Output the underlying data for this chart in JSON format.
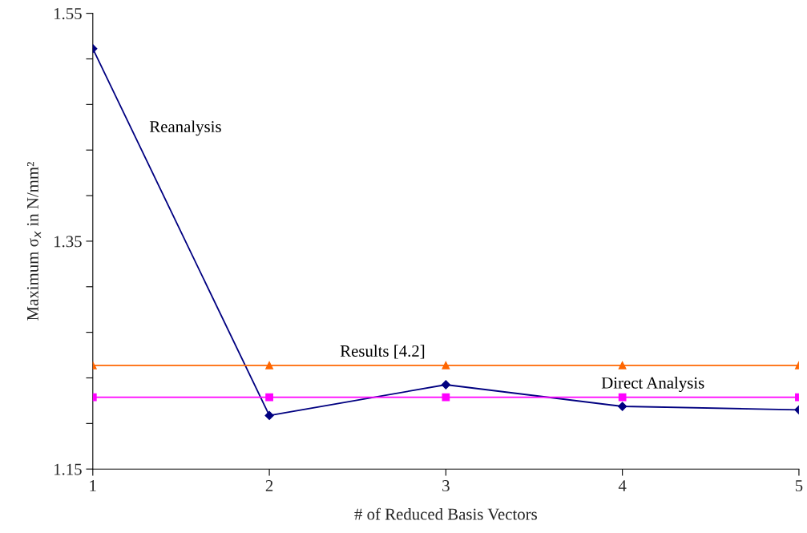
{
  "chart_data": {
    "type": "line",
    "xlabel": "# of Reduced Basis Vectors",
    "ylabel": "Maximum σ$_{x}$ in N/mm²",
    "x": [
      1,
      2,
      3,
      4,
      5
    ],
    "xlim": [
      1,
      5
    ],
    "xticks": [
      1,
      2,
      3,
      4,
      5
    ],
    "ylim": [
      1.15,
      1.55
    ],
    "yticks": [
      1.15,
      {
        "value": 1.19,
        "label": null
      },
      {
        "value": 1.23,
        "label": null
      },
      {
        "value": 1.27,
        "label": null
      },
      {
        "value": 1.31,
        "label": null
      },
      1.35,
      {
        "value": 1.39,
        "label": null
      },
      {
        "value": 1.43,
        "label": null
      },
      {
        "value": 1.47,
        "label": null
      },
      {
        "value": 1.51,
        "label": null
      },
      1.55
    ],
    "grid": false,
    "legend": false,
    "series": [
      {
        "name": "Reanalysis",
        "color": "#000080",
        "marker": "diamond",
        "values": [
          1.519,
          1.197,
          1.224,
          1.205,
          1.202
        ]
      },
      {
        "name": "Results [4.2]",
        "color": "#ff6600",
        "marker": "triangle",
        "values": [
          1.241,
          1.241,
          1.241,
          1.241,
          1.241
        ]
      },
      {
        "name": "Direct Analysis",
        "color": "#ff00ff",
        "marker": "square",
        "values": [
          1.213,
          1.213,
          1.213,
          1.213,
          1.213
        ]
      }
    ]
  }
}
